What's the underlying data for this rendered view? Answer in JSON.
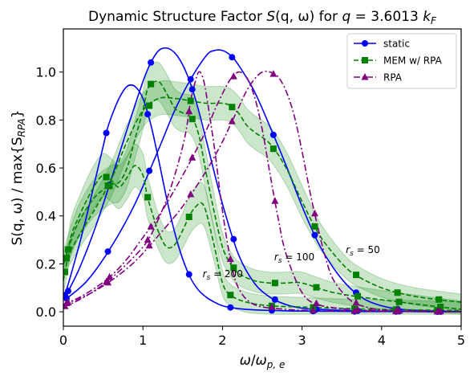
{
  "chart_data": {
    "type": "line",
    "title": "Dynamic Structure Factor S(q, ω) for q = 3.6013 k_F",
    "title_parts": {
      "prefix": "Dynamic Structure Factor ",
      "S": "S",
      "qw": "(q, ω)",
      "mid": " for ",
      "q": "q",
      "eq": " = 3.6013 ",
      "k": "k",
      "F": "F"
    },
    "xlabel": "ω/ω_{p,e}",
    "xlabel_parts": {
      "w": "ω",
      "slash": "/",
      "w2": "ω",
      "sub": "p, e"
    },
    "ylabel": "S(q, ω) / max{S_RPA}",
    "ylabel_parts": {
      "main": "S(q, ω) / max{S",
      "sub": "RPA",
      "close": "}"
    },
    "xlim": [
      0,
      5
    ],
    "ylim": [
      -0.06,
      1.18
    ],
    "xticks": [
      0,
      1,
      2,
      3,
      4,
      5
    ],
    "yticks": [
      0.0,
      0.2,
      0.4,
      0.6,
      0.8,
      1.0
    ],
    "xtick_labels": [
      "0",
      "1",
      "2",
      "3",
      "4",
      "5"
    ],
    "ytick_labels": [
      "0.0",
      "0.2",
      "0.4",
      "0.6",
      "0.8",
      "1.0"
    ],
    "grid": false,
    "legend_position": "top-right",
    "legend": [
      {
        "label": "static",
        "color": "#0000ff",
        "dash": "solid",
        "marker": "circle"
      },
      {
        "label": "MEM w/ RPA",
        "color": "#008000",
        "dash": "dashed",
        "marker": "square"
      },
      {
        "label": "RPA",
        "color": "#800080",
        "dash": "dashdot",
        "marker": "triangle"
      }
    ],
    "annotations": [
      {
        "text": "r_s = 200",
        "base": "r",
        "sub": "s",
        "rest": " = 200",
        "x": 1.75,
        "y": 0.145
      },
      {
        "text": "r_s = 100",
        "base": "r",
        "sub": "s",
        "rest": " = 100",
        "x": 2.65,
        "y": 0.215
      },
      {
        "text": "r_s = 50",
        "base": "r",
        "sub": "s",
        "rest": " = 50",
        "x": 3.55,
        "y": 0.245
      }
    ],
    "series": [
      {
        "name": "static",
        "rs": 200,
        "color": "#0000ff",
        "dash": "solid",
        "marker": "circle",
        "x": [
          0.02,
          0.1,
          0.2,
          0.3,
          0.4,
          0.5,
          0.55,
          0.6,
          0.7,
          0.8,
          0.9,
          1.0,
          1.1,
          1.2,
          1.3,
          1.4,
          1.5,
          1.6,
          1.7,
          1.8,
          1.9,
          2.0,
          2.1,
          2.2,
          2.4,
          2.6,
          2.8,
          3.0,
          3.4,
          3.8,
          4.2,
          5.0
        ],
        "y": [
          0.07,
          0.16,
          0.28,
          0.41,
          0.55,
          0.69,
          0.76,
          0.81,
          0.89,
          0.94,
          0.94,
          0.89,
          0.78,
          0.63,
          0.47,
          0.33,
          0.22,
          0.14,
          0.09,
          0.06,
          0.04,
          0.025,
          0.018,
          0.013,
          0.008,
          0.006,
          0.004,
          0.003,
          0.002,
          0.001,
          0.001,
          0.0
        ]
      },
      {
        "name": "static",
        "rs": 100,
        "color": "#0000ff",
        "dash": "solid",
        "marker": "circle",
        "x": [
          0.02,
          0.2,
          0.4,
          0.6,
          0.8,
          1.0,
          1.1,
          1.2,
          1.3,
          1.4,
          1.5,
          1.6,
          1.7,
          1.8,
          2.0,
          2.2,
          2.4,
          2.6,
          2.8,
          3.0,
          3.2,
          3.6,
          4.0,
          4.5,
          5.0
        ],
        "y": [
          0.06,
          0.18,
          0.35,
          0.55,
          0.76,
          0.96,
          1.04,
          1.09,
          1.1,
          1.08,
          1.03,
          0.95,
          0.84,
          0.71,
          0.45,
          0.24,
          0.12,
          0.06,
          0.03,
          0.015,
          0.01,
          0.005,
          0.003,
          0.001,
          0.0
        ]
      },
      {
        "name": "static",
        "rs": 50,
        "color": "#0000ff",
        "dash": "solid",
        "marker": "circle",
        "x": [
          0.02,
          0.3,
          0.6,
          0.9,
          1.2,
          1.4,
          1.6,
          1.8,
          1.9,
          2.0,
          2.1,
          2.2,
          2.4,
          2.6,
          2.8,
          3.0,
          3.2,
          3.4,
          3.6,
          3.8,
          4.0,
          4.2,
          4.5,
          5.0
        ],
        "y": [
          0.05,
          0.13,
          0.27,
          0.45,
          0.68,
          0.84,
          0.97,
          1.07,
          1.09,
          1.09,
          1.07,
          1.03,
          0.92,
          0.77,
          0.61,
          0.44,
          0.29,
          0.18,
          0.1,
          0.05,
          0.025,
          0.012,
          0.005,
          0.001
        ]
      },
      {
        "name": "MEM w/ RPA",
        "rs": 200,
        "color": "#008000",
        "dash": "dashed",
        "marker": "square",
        "x": [
          0.0,
          0.05,
          0.1,
          0.2,
          0.3,
          0.4,
          0.5,
          0.6,
          0.7,
          0.8,
          0.9,
          1.0,
          1.05,
          1.1,
          1.2,
          1.3,
          1.4,
          1.5,
          1.6,
          1.7,
          1.75,
          1.8,
          1.9,
          2.0,
          2.1,
          2.3,
          2.6,
          3.0,
          3.4,
          4.0,
          5.0
        ],
        "y": [
          0.13,
          0.22,
          0.32,
          0.4,
          0.47,
          0.53,
          0.57,
          0.55,
          0.52,
          0.56,
          0.61,
          0.57,
          0.49,
          0.43,
          0.33,
          0.27,
          0.28,
          0.34,
          0.41,
          0.45,
          0.45,
          0.41,
          0.27,
          0.12,
          0.07,
          0.04,
          0.025,
          0.02,
          0.015,
          0.01,
          0.005
        ],
        "band_halfwidth": 0.08
      },
      {
        "name": "MEM w/ RPA",
        "rs": 100,
        "color": "#008000",
        "dash": "dashed",
        "marker": "square",
        "x": [
          0.0,
          0.1,
          0.2,
          0.4,
          0.6,
          0.7,
          0.8,
          0.9,
          1.0,
          1.05,
          1.1,
          1.2,
          1.3,
          1.4,
          1.5,
          1.6,
          1.7,
          1.8,
          1.9,
          2.0,
          2.1,
          2.2,
          2.4,
          2.6,
          2.8,
          3.0,
          3.4,
          4.0,
          5.0
        ],
        "y": [
          0.2,
          0.3,
          0.38,
          0.48,
          0.53,
          0.54,
          0.6,
          0.72,
          0.84,
          0.92,
          0.95,
          0.96,
          0.91,
          0.85,
          0.83,
          0.82,
          0.74,
          0.57,
          0.41,
          0.27,
          0.2,
          0.16,
          0.13,
          0.12,
          0.12,
          0.12,
          0.08,
          0.05,
          0.01
        ],
        "band_halfwidth": 0.07
      },
      {
        "name": "MEM w/ RPA",
        "rs": 50,
        "color": "#008000",
        "dash": "dashed",
        "marker": "square",
        "x": [
          0.0,
          0.2,
          0.4,
          0.6,
          0.8,
          1.0,
          1.2,
          1.4,
          1.6,
          1.8,
          2.0,
          2.1,
          2.2,
          2.3,
          2.4,
          2.6,
          2.8,
          3.0,
          3.2,
          3.4,
          3.6,
          3.8,
          4.0,
          4.2,
          4.5,
          5.0
        ],
        "y": [
          0.2,
          0.32,
          0.43,
          0.55,
          0.71,
          0.84,
          0.89,
          0.89,
          0.88,
          0.87,
          0.87,
          0.86,
          0.83,
          0.78,
          0.75,
          0.7,
          0.6,
          0.46,
          0.33,
          0.24,
          0.17,
          0.13,
          0.1,
          0.08,
          0.06,
          0.04
        ],
        "band_halfwidth": 0.06
      },
      {
        "name": "RPA",
        "rs": 200,
        "color": "#800080",
        "dash": "dashdot",
        "marker": "triangle",
        "x": [
          0.0,
          0.2,
          0.4,
          0.6,
          0.8,
          1.0,
          1.1,
          1.2,
          1.3,
          1.4,
          1.5,
          1.55,
          1.6,
          1.65,
          1.7,
          1.75,
          1.8,
          1.9,
          2.0,
          2.1,
          2.2,
          2.4,
          2.8,
          3.2,
          4.0,
          5.0
        ],
        "y": [
          0.02,
          0.05,
          0.09,
          0.14,
          0.2,
          0.27,
          0.32,
          0.39,
          0.47,
          0.57,
          0.69,
          0.77,
          0.88,
          0.95,
          1.0,
          0.98,
          0.9,
          0.68,
          0.42,
          0.22,
          0.1,
          0.03,
          0.01,
          0.005,
          0.002,
          0.0
        ]
      },
      {
        "name": "RPA",
        "rs": 100,
        "color": "#800080",
        "dash": "dashdot",
        "marker": "triangle",
        "x": [
          0.0,
          0.2,
          0.4,
          0.6,
          0.8,
          1.0,
          1.2,
          1.4,
          1.6,
          1.8,
          1.9,
          2.0,
          2.1,
          2.2,
          2.3,
          2.4,
          2.5,
          2.6,
          2.7,
          2.8,
          3.0,
          3.2,
          3.6,
          4.0,
          5.0
        ],
        "y": [
          0.03,
          0.06,
          0.1,
          0.15,
          0.22,
          0.31,
          0.4,
          0.51,
          0.63,
          0.76,
          0.84,
          0.91,
          0.97,
          1.0,
          0.98,
          0.9,
          0.76,
          0.57,
          0.39,
          0.24,
          0.08,
          0.03,
          0.01,
          0.005,
          0.0
        ]
      },
      {
        "name": "RPA",
        "rs": 50,
        "color": "#800080",
        "dash": "dashdot",
        "marker": "triangle",
        "x": [
          0.0,
          0.3,
          0.6,
          0.9,
          1.2,
          1.5,
          1.8,
          2.0,
          2.1,
          2.2,
          2.3,
          2.4,
          2.5,
          2.6,
          2.7,
          2.8,
          2.9,
          3.0,
          3.1,
          3.2,
          3.3,
          3.4,
          3.6,
          3.8,
          4.0,
          4.3,
          5.0
        ],
        "y": [
          0.03,
          0.07,
          0.13,
          0.21,
          0.32,
          0.44,
          0.59,
          0.71,
          0.78,
          0.85,
          0.92,
          0.97,
          1.0,
          1.0,
          0.98,
          0.92,
          0.82,
          0.67,
          0.5,
          0.35,
          0.22,
          0.13,
          0.05,
          0.02,
          0.008,
          0.003,
          0.0
        ]
      }
    ]
  }
}
